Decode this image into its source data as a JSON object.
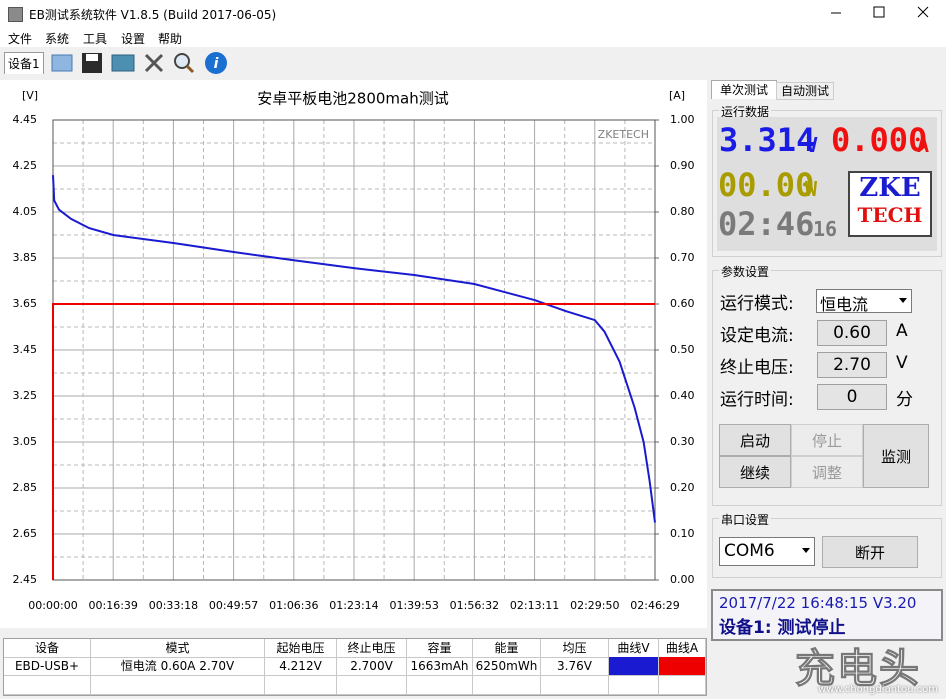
{
  "window": {
    "title": "EB测试系统软件 V1.8.5 (Build 2017-06-05)",
    "menu": [
      "文件",
      "系统",
      "工具",
      "设置",
      "帮助"
    ],
    "tab": "设备1"
  },
  "chart_data": {
    "type": "line",
    "title": "安卓平板电池2800mah测试",
    "y_unit": "[V]",
    "y2_unit": "[A]",
    "annotation": "ZKETECH",
    "xlim": [
      0,
      9989
    ],
    "xticks": [
      {
        "value": 0,
        "label": "00:00:00"
      },
      {
        "value": 999,
        "label": "00:16:39"
      },
      {
        "value": 1998,
        "label": "00:33:18"
      },
      {
        "value": 2997,
        "label": "00:49:57"
      },
      {
        "value": 3996,
        "label": "01:06:36"
      },
      {
        "value": 4994,
        "label": "01:23:14"
      },
      {
        "value": 5993,
        "label": "01:39:53"
      },
      {
        "value": 6992,
        "label": "01:56:32"
      },
      {
        "value": 7991,
        "label": "02:13:11"
      },
      {
        "value": 8990,
        "label": "02:29:50"
      },
      {
        "value": 9989,
        "label": "02:46:29"
      }
    ],
    "ylim": [
      2.45,
      4.45
    ],
    "yticks": [
      2.45,
      2.65,
      2.85,
      3.05,
      3.25,
      3.45,
      3.65,
      3.85,
      4.05,
      4.25,
      4.45
    ],
    "y2lim": [
      0,
      1
    ],
    "y2ticks": [
      {
        "value": 0,
        "label": "0.00"
      },
      {
        "value": 0.1,
        "label": "0.10"
      },
      {
        "value": 0.2,
        "label": "0.20"
      },
      {
        "value": 0.3,
        "label": "0.30"
      },
      {
        "value": 0.4,
        "label": "0.40"
      },
      {
        "value": 0.5,
        "label": "0.50"
      },
      {
        "value": 0.6,
        "label": "0.60"
      },
      {
        "value": 0.7,
        "label": "0.70"
      },
      {
        "value": 0.8,
        "label": "0.80"
      },
      {
        "value": 0.9,
        "label": "0.90"
      },
      {
        "value": 1,
        "label": "1.00"
      }
    ],
    "grid": true,
    "series": [
      {
        "name": "曲线V",
        "color": "#1a1ad0",
        "x": [
          0,
          20,
          100,
          300,
          600,
          999,
          1998,
          2997,
          3996,
          4994,
          5993,
          6992,
          7991,
          8500,
          8990,
          9150,
          9400,
          9650,
          9800,
          9900,
          9989
        ],
        "values": [
          4.21,
          4.1,
          4.06,
          4.02,
          3.98,
          3.95,
          3.915,
          3.876,
          3.84,
          3.806,
          3.776,
          3.737,
          3.667,
          3.62,
          3.58,
          3.53,
          3.4,
          3.2,
          3.05,
          2.88,
          2.7
        ]
      },
      {
        "name": "曲线A",
        "color": "#ee0000",
        "axis": "y2",
        "x": [
          0,
          0,
          9989
        ],
        "values": [
          0,
          0.6,
          0.6
        ]
      }
    ]
  },
  "panel": {
    "tabs": [
      "单次测试",
      "自动测试"
    ],
    "run_group": "运行数据",
    "voltage": "3.314",
    "voltage_unit": "V",
    "current": "0.000",
    "current_unit": "A",
    "power": "00.00",
    "power_unit": "W",
    "time": "02:46",
    "time_seconds": "16",
    "logo_top": "ZKE",
    "logo_bottom": "TECH",
    "param_group": "参数设置",
    "params": [
      {
        "label": "运行模式:",
        "value": "恒电流"
      },
      {
        "label": "设定电流:",
        "value": "0.60",
        "unit": "A"
      },
      {
        "label": "终止电压:",
        "value": "2.70",
        "unit": "V"
      },
      {
        "label": "运行时间:",
        "value": "0",
        "unit": "分"
      }
    ],
    "buttons": [
      "启动",
      "停止",
      "继续",
      "调整",
      "监测"
    ],
    "port_group": "串口设置",
    "port": "COM6",
    "port_button": "断开",
    "status_time": "2017/7/22 16:48:15  V3.20",
    "status": "设备1: 测试停止"
  },
  "table": {
    "headers": [
      "设备",
      "模式",
      "起始电压",
      "终止电压",
      "容量",
      "能量",
      "均压",
      "曲线V",
      "曲线A"
    ],
    "rows": [
      [
        "EBD-USB+",
        "恒电流  0.60A  2.70V",
        "4.212V",
        "2.700V",
        "1663mAh",
        "6250mWh",
        "3.76V"
      ]
    ]
  },
  "watermark": {
    "logo": "充电头",
    "url": "www.chongdiantou.com"
  }
}
